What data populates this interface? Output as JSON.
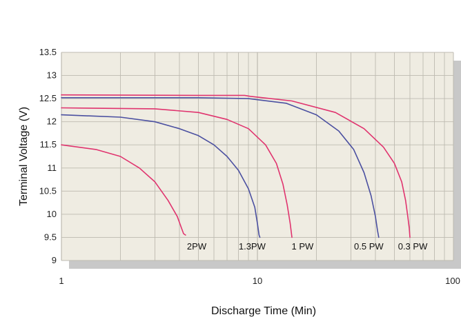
{
  "chart_data": {
    "type": "line",
    "xlabel": "Discharge Time (Min)",
    "ylabel": "Terminal Voltage (V)",
    "x_scale": "log",
    "xlim": [
      1,
      100
    ],
    "ylim": [
      9,
      13.5
    ],
    "x_ticks": [
      {
        "value": 1,
        "label": "1"
      },
      {
        "value": 10,
        "label": "10"
      },
      {
        "value": 100,
        "label": "100"
      }
    ],
    "y_ticks": [
      {
        "value": 9,
        "label": "9"
      },
      {
        "value": 9.5,
        "label": "9.5"
      },
      {
        "value": 10,
        "label": "10"
      },
      {
        "value": 10.5,
        "label": "10.5"
      },
      {
        "value": 11,
        "label": "11"
      },
      {
        "value": 11.5,
        "label": "11.5"
      },
      {
        "value": 12,
        "label": "12"
      },
      {
        "value": 12.5,
        "label": "12.5"
      },
      {
        "value": 13,
        "label": "13"
      },
      {
        "value": 13.5,
        "label": "13.5"
      }
    ],
    "grid": true,
    "legend": "none",
    "colors": {
      "pink": "#e0336e",
      "blue": "#4a4fa0",
      "plot_bg": "#efece2",
      "grid": "#bdbab0",
      "shadow": "#c8c8c8"
    },
    "series": [
      {
        "name": "2PW",
        "color": "#e0336e",
        "label_at": [
          4.9,
          9.3
        ],
        "x": [
          1,
          1.5,
          2,
          2.5,
          3,
          3.5,
          3.9,
          4.1,
          4.2,
          4.3
        ],
        "y": [
          11.5,
          11.4,
          11.25,
          11.0,
          10.7,
          10.3,
          9.95,
          9.7,
          9.58,
          9.55
        ]
      },
      {
        "name": "1.3PW",
        "color": "#4a4fa0",
        "label_at": [
          9.4,
          9.3
        ],
        "x": [
          1,
          2,
          3,
          4,
          5,
          6,
          7,
          8,
          9,
          9.7,
          10.0,
          10.2,
          10.3
        ],
        "y": [
          12.15,
          12.1,
          12.0,
          11.85,
          11.7,
          11.5,
          11.25,
          10.95,
          10.55,
          10.15,
          9.8,
          9.55,
          9.5
        ]
      },
      {
        "name": "1 PW",
        "color": "#e0336e",
        "label_at": [
          17,
          9.3
        ],
        "x": [
          1,
          3,
          5,
          7,
          9,
          11,
          12.5,
          13.5,
          14.2,
          14.7,
          15.0
        ],
        "y": [
          12.3,
          12.28,
          12.2,
          12.05,
          11.85,
          11.5,
          11.1,
          10.65,
          10.2,
          9.8,
          9.5
        ]
      },
      {
        "name": "0.5 PW",
        "color": "#4a4fa0",
        "label_at": [
          37,
          9.3
        ],
        "x": [
          1,
          5,
          9,
          14,
          20,
          26,
          31,
          35,
          38,
          40,
          41,
          41.6
        ],
        "y": [
          12.52,
          12.52,
          12.5,
          12.4,
          12.15,
          11.8,
          11.4,
          10.9,
          10.4,
          9.95,
          9.65,
          9.5
        ]
      },
      {
        "name": "0.3 PW",
        "color": "#e0336e",
        "label_at": [
          62,
          9.3
        ],
        "x": [
          1,
          5,
          8.6,
          9.2,
          15,
          25,
          35,
          44,
          50,
          54.5,
          57,
          58.5,
          59.5,
          60
        ],
        "y": [
          12.58,
          12.57,
          12.57,
          12.55,
          12.45,
          12.2,
          11.85,
          11.45,
          11.1,
          10.7,
          10.3,
          9.95,
          9.7,
          9.5
        ]
      }
    ]
  }
}
